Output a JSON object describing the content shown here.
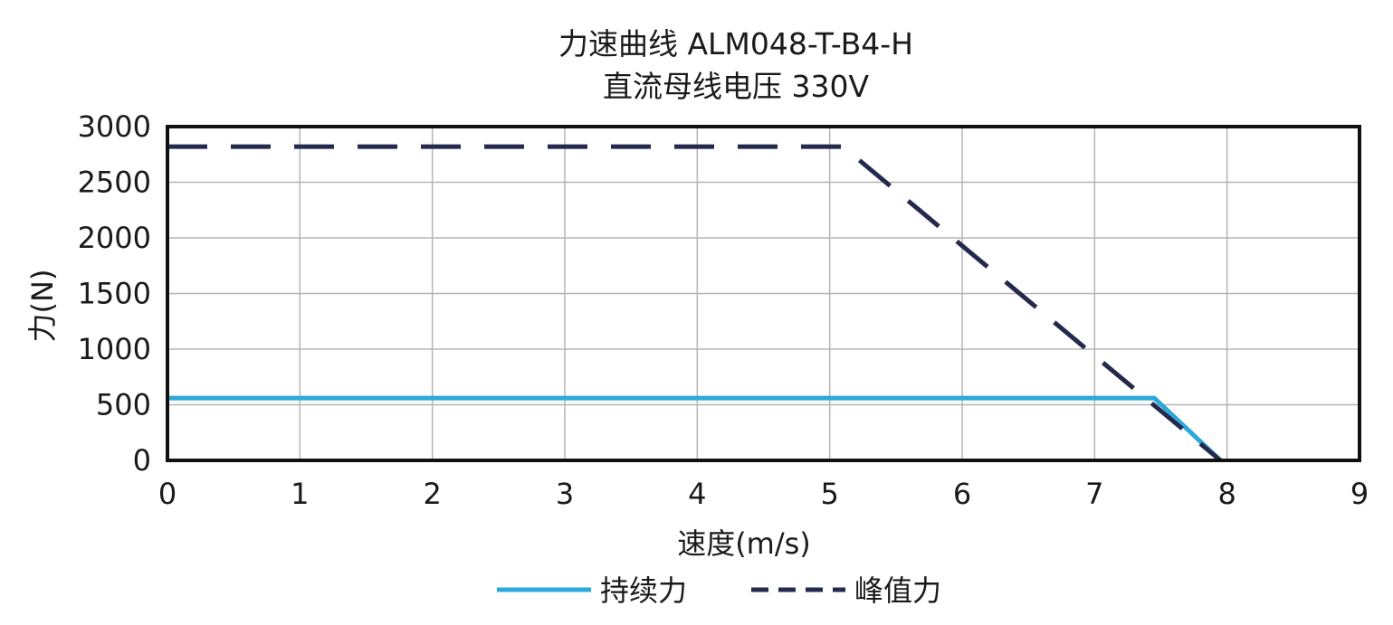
{
  "chart_data": {
    "type": "line",
    "title": "力速曲线 ALM048-T-B4-H",
    "subtitle": "直流母线电压 330V",
    "xlabel": "速度(m/s)",
    "ylabel": "力(N)",
    "xlim": [
      0,
      9
    ],
    "ylim": [
      0,
      3000
    ],
    "xticks": [
      "0",
      "1",
      "2",
      "3",
      "4",
      "5",
      "6",
      "7",
      "8",
      "9"
    ],
    "yticks": [
      "3000",
      "2500",
      "2000",
      "1500",
      "1000",
      "500",
      "0"
    ],
    "grid": true,
    "legend_position": "bottom-center",
    "series": [
      {
        "name": "持续力",
        "color": "#2ba8dc",
        "style": "solid",
        "points": [
          [
            0,
            560
          ],
          [
            7.45,
            560
          ],
          [
            7.95,
            0
          ]
        ]
      },
      {
        "name": "峰值力",
        "color": "#252a4d",
        "style": "dashed",
        "points": [
          [
            0,
            2820
          ],
          [
            5.1,
            2820
          ],
          [
            7.95,
            0
          ]
        ]
      }
    ]
  }
}
